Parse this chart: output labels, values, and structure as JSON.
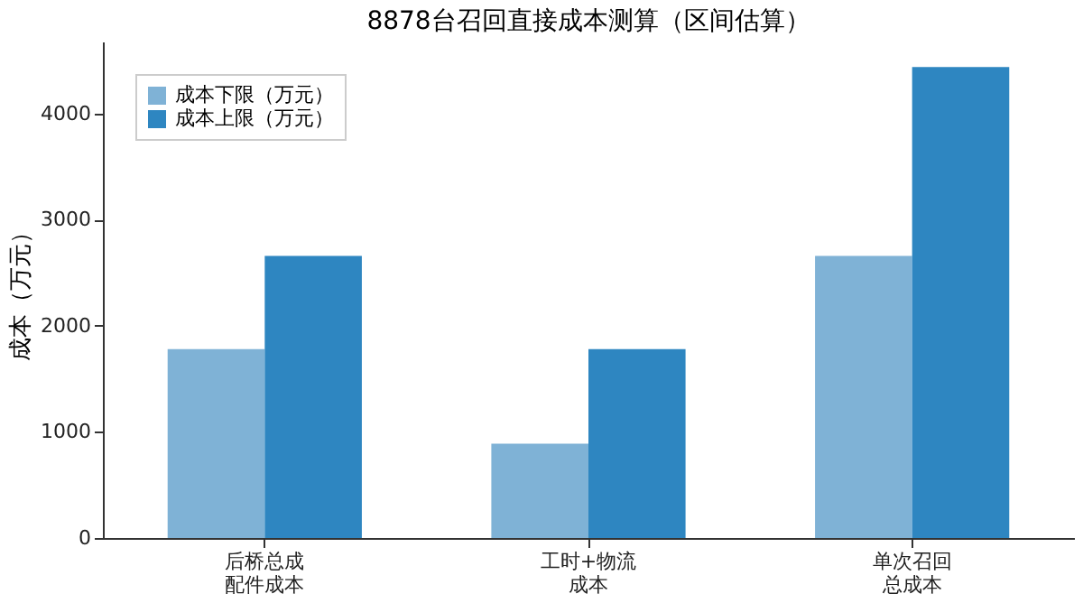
{
  "chart_data": {
    "type": "bar",
    "title": "8878台召回直接成本测算（区间估算）",
    "ylabel": "成本（万元）",
    "categories": [
      "后桥总成配件成本",
      "工时+物流成本",
      "单次召回总成本"
    ],
    "series": [
      {
        "name": "成本下限（万元）",
        "color": "#7fb2d6",
        "values": [
          1780,
          890,
          2660
        ]
      },
      {
        "name": "成本上限（万元）",
        "color": "#2e86c1",
        "values": [
          2660,
          1780,
          4440
        ]
      }
    ],
    "ylim": [
      0,
      4680
    ],
    "yticks": [
      0,
      1000,
      2000,
      3000,
      4000
    ],
    "grid": false,
    "legend": "top left"
  }
}
